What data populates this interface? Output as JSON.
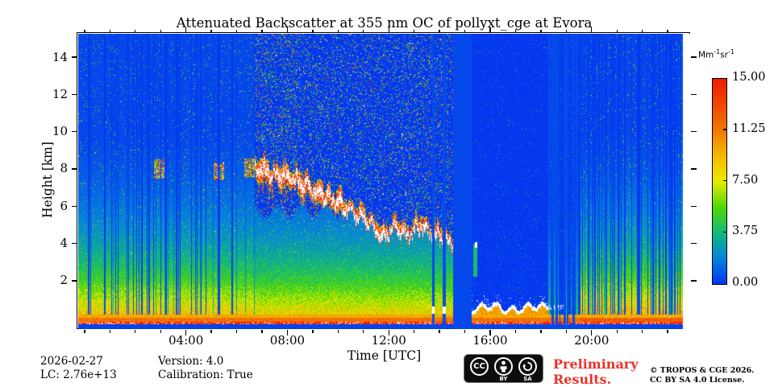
{
  "page": {
    "background": "#ffffff"
  },
  "chart_data": {
    "type": "heatmap",
    "title": "Attenuated Backscatter at 355 nm OC of pollyxt_cge at Evora",
    "xlabel": "Time [UTC]",
    "ylabel": "Height [km]",
    "x_axis": {
      "start_hour": -0.25,
      "end_hour": 23.9,
      "data_end_hour": 23.6,
      "major_tick_hours": [
        4,
        8,
        12,
        16,
        20
      ],
      "major_tick_labels": [
        "04:00",
        "08:00",
        "12:00",
        "16:00",
        "20:00"
      ],
      "minor_tick_interval_hours": 1
    },
    "y_axis": {
      "min_km": -0.6,
      "max_km": 15.26,
      "major_tick_km": [
        2,
        4,
        6,
        8,
        10,
        12,
        14
      ]
    },
    "colorbar": {
      "unit_prefix": "Mm",
      "unit_sup1": "-1",
      "unit_mid": "sr",
      "unit_sup2": "-1",
      "tick_labels": [
        "15.00",
        "11.25",
        "7.50",
        "3.75",
        "0.00"
      ],
      "tick_values": [
        15,
        11.25,
        7.5,
        3.75,
        0
      ],
      "min": 0,
      "max": 15,
      "over_color": "#ffffff",
      "stops": [
        [
          0,
          "#0534F0"
        ],
        [
          1.875,
          "#0584DC"
        ],
        [
          3.75,
          "#12B97B"
        ],
        [
          5.6,
          "#4FD805"
        ],
        [
          7.5,
          "#E8EB00"
        ],
        [
          9.4,
          "#F5B800"
        ],
        [
          11.25,
          "#F07800"
        ],
        [
          13.1,
          "#F04800"
        ],
        [
          15,
          "#EF1C00"
        ]
      ]
    },
    "regions": {
      "daytime_noise_hours": [
        6.71,
        18.29
      ],
      "data_gap_hours": [
        14.53,
        15.26
      ],
      "cloud_column_hours": [
        [
          13.71,
          13.8
        ],
        [
          14.12,
          14.25
        ]
      ],
      "evening_stripe_hours": [
        18.29,
        19.53
      ]
    },
    "aerosol_layer_path_hour_km": [
      [
        6.7,
        8.15
      ],
      [
        7.3,
        7.8
      ],
      [
        8.2,
        7.5
      ],
      [
        9.0,
        6.9
      ],
      [
        9.8,
        6.3
      ],
      [
        10.6,
        5.6
      ],
      [
        11.2,
        5.1
      ],
      [
        11.75,
        4.3
      ],
      [
        12.2,
        4.8
      ],
      [
        12.7,
        4.4
      ],
      [
        13.2,
        4.85
      ],
      [
        13.75,
        4.45
      ],
      [
        14.2,
        4.15
      ],
      [
        14.5,
        3.95
      ]
    ],
    "early_patches_hour_km": [
      [
        2.95,
        8.0
      ],
      [
        5.3,
        7.9
      ],
      [
        6.5,
        8.05
      ]
    ]
  },
  "annotations": {
    "date": "2026-02-27",
    "lc": "LC: 2.76e+13",
    "version": "Version: 4.0",
    "calibration": "Calibration: True"
  },
  "license": {
    "cc_label": "CC",
    "by_label": "BY",
    "sa_label": "SA",
    "preliminary_line1": "Preliminary",
    "preliminary_line2": "Results.",
    "preliminary_color": "#e8332b",
    "copyright_line1": "© TROPOS & CGE 2026.",
    "copyright_line2": "CC BY SA 4.0 License."
  }
}
